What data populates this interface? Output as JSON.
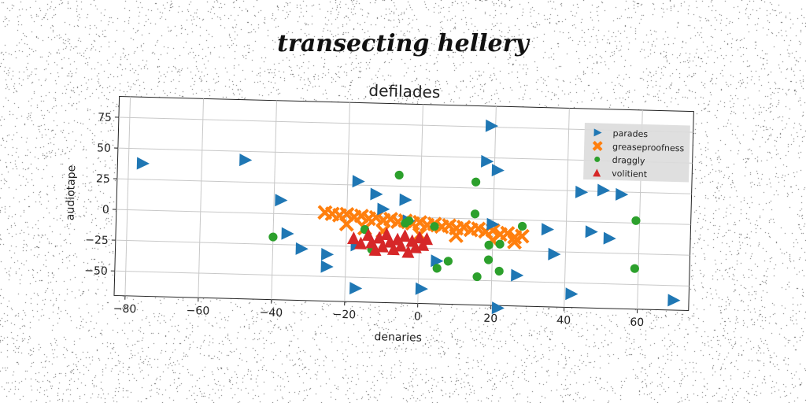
{
  "header": {
    "title": "transecting hellery"
  },
  "chart_data": {
    "type": "scatter",
    "title": "defilades",
    "xlabel": "denaries",
    "ylabel": "audiotape",
    "xlim": [
      -83,
      74
    ],
    "ylim": [
      -70,
      92
    ],
    "xticks": [
      -80,
      -60,
      -40,
      -20,
      0,
      20,
      40,
      60
    ],
    "yticks": [
      -50,
      -25,
      0,
      25,
      50,
      75
    ],
    "grid": true,
    "legend_position": "top-right",
    "colors": {
      "parades": "#1f77b4",
      "greaseproofness": "#ff7f0e",
      "draggly": "#2ca02c",
      "volitient": "#d62728"
    },
    "series": [
      {
        "name": "parades",
        "marker": "triangle-right",
        "points": [
          [
            -76,
            38
          ],
          [
            -48,
            43
          ],
          [
            -38,
            11
          ],
          [
            -36,
            -16
          ],
          [
            -32,
            -28
          ],
          [
            -25,
            -32
          ],
          [
            -25,
            -42
          ],
          [
            -17,
            -24
          ],
          [
            -17,
            28
          ],
          [
            -17,
            -59
          ],
          [
            -12,
            18
          ],
          [
            -10,
            6
          ],
          [
            -4,
            14
          ],
          [
            -3,
            -3
          ],
          [
            5,
            -35
          ],
          [
            1,
            -58
          ],
          [
            18,
            47
          ],
          [
            19,
            76
          ],
          [
            20,
            -4
          ],
          [
            21,
            40
          ],
          [
            22,
            -72
          ],
          [
            27,
            -45
          ],
          [
            35,
            -7
          ],
          [
            37,
            -27
          ],
          [
            42,
            -59
          ],
          [
            44,
            24
          ],
          [
            47,
            -8
          ],
          [
            50,
            26
          ],
          [
            52,
            -13
          ],
          [
            55,
            23
          ],
          [
            70,
            -62
          ]
        ]
      },
      {
        "name": "greaseproofness",
        "marker": "x",
        "points": [
          [
            -26,
            2
          ],
          [
            -24,
            1
          ],
          [
            -22,
            0
          ],
          [
            -20,
            1
          ],
          [
            -18,
            -1
          ],
          [
            -16,
            0
          ],
          [
            -14,
            -2
          ],
          [
            -12,
            -1
          ],
          [
            -10,
            -3
          ],
          [
            -8,
            -2
          ],
          [
            -6,
            -4
          ],
          [
            -4,
            -3
          ],
          [
            -2,
            -5
          ],
          [
            0,
            -4
          ],
          [
            2,
            -6
          ],
          [
            4,
            -5
          ],
          [
            6,
            -7
          ],
          [
            8,
            -6
          ],
          [
            10,
            -8
          ],
          [
            12,
            -7
          ],
          [
            14,
            -9
          ],
          [
            16,
            -8
          ],
          [
            18,
            -10
          ],
          [
            20,
            -9
          ],
          [
            22,
            -12
          ],
          [
            24,
            -11
          ],
          [
            26,
            -14
          ],
          [
            28,
            -13
          ],
          [
            -20,
            -7
          ],
          [
            -15,
            -10
          ],
          [
            -10,
            -12
          ],
          [
            0,
            -14
          ],
          [
            10,
            -14
          ],
          [
            20,
            -17
          ],
          [
            26,
            -18
          ]
        ]
      },
      {
        "name": "draggly",
        "marker": "circle",
        "points": [
          [
            -40,
            -19
          ],
          [
            -15,
            -11
          ],
          [
            -13,
            -27
          ],
          [
            -6,
            34
          ],
          [
            -4,
            -5
          ],
          [
            -3,
            -3
          ],
          [
            4,
            -7
          ],
          [
            5,
            -41
          ],
          [
            8,
            -35
          ],
          [
            15,
            30
          ],
          [
            15,
            4
          ],
          [
            16,
            -47
          ],
          [
            19,
            -21
          ],
          [
            19,
            -33
          ],
          [
            22,
            -20
          ],
          [
            22,
            -42
          ],
          [
            28,
            -5
          ],
          [
            59,
            2
          ],
          [
            59,
            -37
          ]
        ]
      },
      {
        "name": "volitient",
        "marker": "triangle-up",
        "points": [
          [
            -18,
            -18
          ],
          [
            -16,
            -22
          ],
          [
            -14,
            -15
          ],
          [
            -13,
            -21
          ],
          [
            -12,
            -27
          ],
          [
            -11,
            -17
          ],
          [
            -10,
            -24
          ],
          [
            -9,
            -14
          ],
          [
            -8,
            -20
          ],
          [
            -7,
            -26
          ],
          [
            -6,
            -18
          ],
          [
            -5,
            -23
          ],
          [
            -4,
            -15
          ],
          [
            -3,
            -28
          ],
          [
            -2,
            -19
          ],
          [
            -1,
            -24
          ],
          [
            0,
            -16
          ],
          [
            1,
            -22
          ],
          [
            2,
            -17
          ]
        ]
      }
    ]
  }
}
